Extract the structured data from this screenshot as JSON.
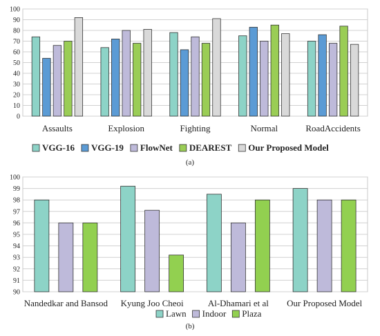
{
  "chart_data": [
    {
      "type": "bar",
      "categories": [
        "Assaults",
        "Explosion",
        "Fighting",
        "Normal",
        "RoadAccidents"
      ],
      "series": [
        {
          "name": "VGG-16",
          "color": "#8dd3c7",
          "values": [
            74,
            64,
            78,
            75,
            70
          ]
        },
        {
          "name": "VGG-19",
          "color": "#5b9bd5",
          "values": [
            54,
            72,
            62,
            83,
            76
          ]
        },
        {
          "name": "FlowNet",
          "color": "#bebada",
          "values": [
            66,
            80,
            74,
            70,
            68
          ]
        },
        {
          "name": "DEAREST",
          "color": "#9acd55",
          "values": [
            70,
            68,
            68,
            85,
            84
          ]
        },
        {
          "name": "Our Proposed Model",
          "color": "#d9d9d9",
          "values": [
            92,
            81,
            91,
            77,
            67
          ]
        }
      ],
      "ylim": [
        0,
        100
      ],
      "yticks": [
        0,
        10,
        20,
        30,
        40,
        50,
        60,
        70,
        80,
        90,
        100
      ],
      "grid": true,
      "legend": "bottom",
      "caption": "(a)"
    },
    {
      "type": "bar",
      "categories": [
        "Nandedkar and Bansod",
        "Kyung Joo Cheoi",
        "Al-Dhamari et al",
        "Our Proposed Model"
      ],
      "series": [
        {
          "name": "Lawn",
          "color": "#8dd3c7",
          "values": [
            98,
            99.2,
            98.5,
            99
          ]
        },
        {
          "name": "Indoor",
          "color": "#bebada",
          "values": [
            96,
            97.1,
            96,
            98
          ]
        },
        {
          "name": "Plaza",
          "color": "#92d050",
          "values": [
            96,
            93.2,
            98,
            98
          ]
        }
      ],
      "ylim": [
        90,
        100
      ],
      "yticks": [
        90,
        91,
        92,
        93,
        94,
        95,
        96,
        97,
        98,
        99,
        100
      ],
      "grid": true,
      "legend": "bottom",
      "caption": "(b)"
    }
  ]
}
